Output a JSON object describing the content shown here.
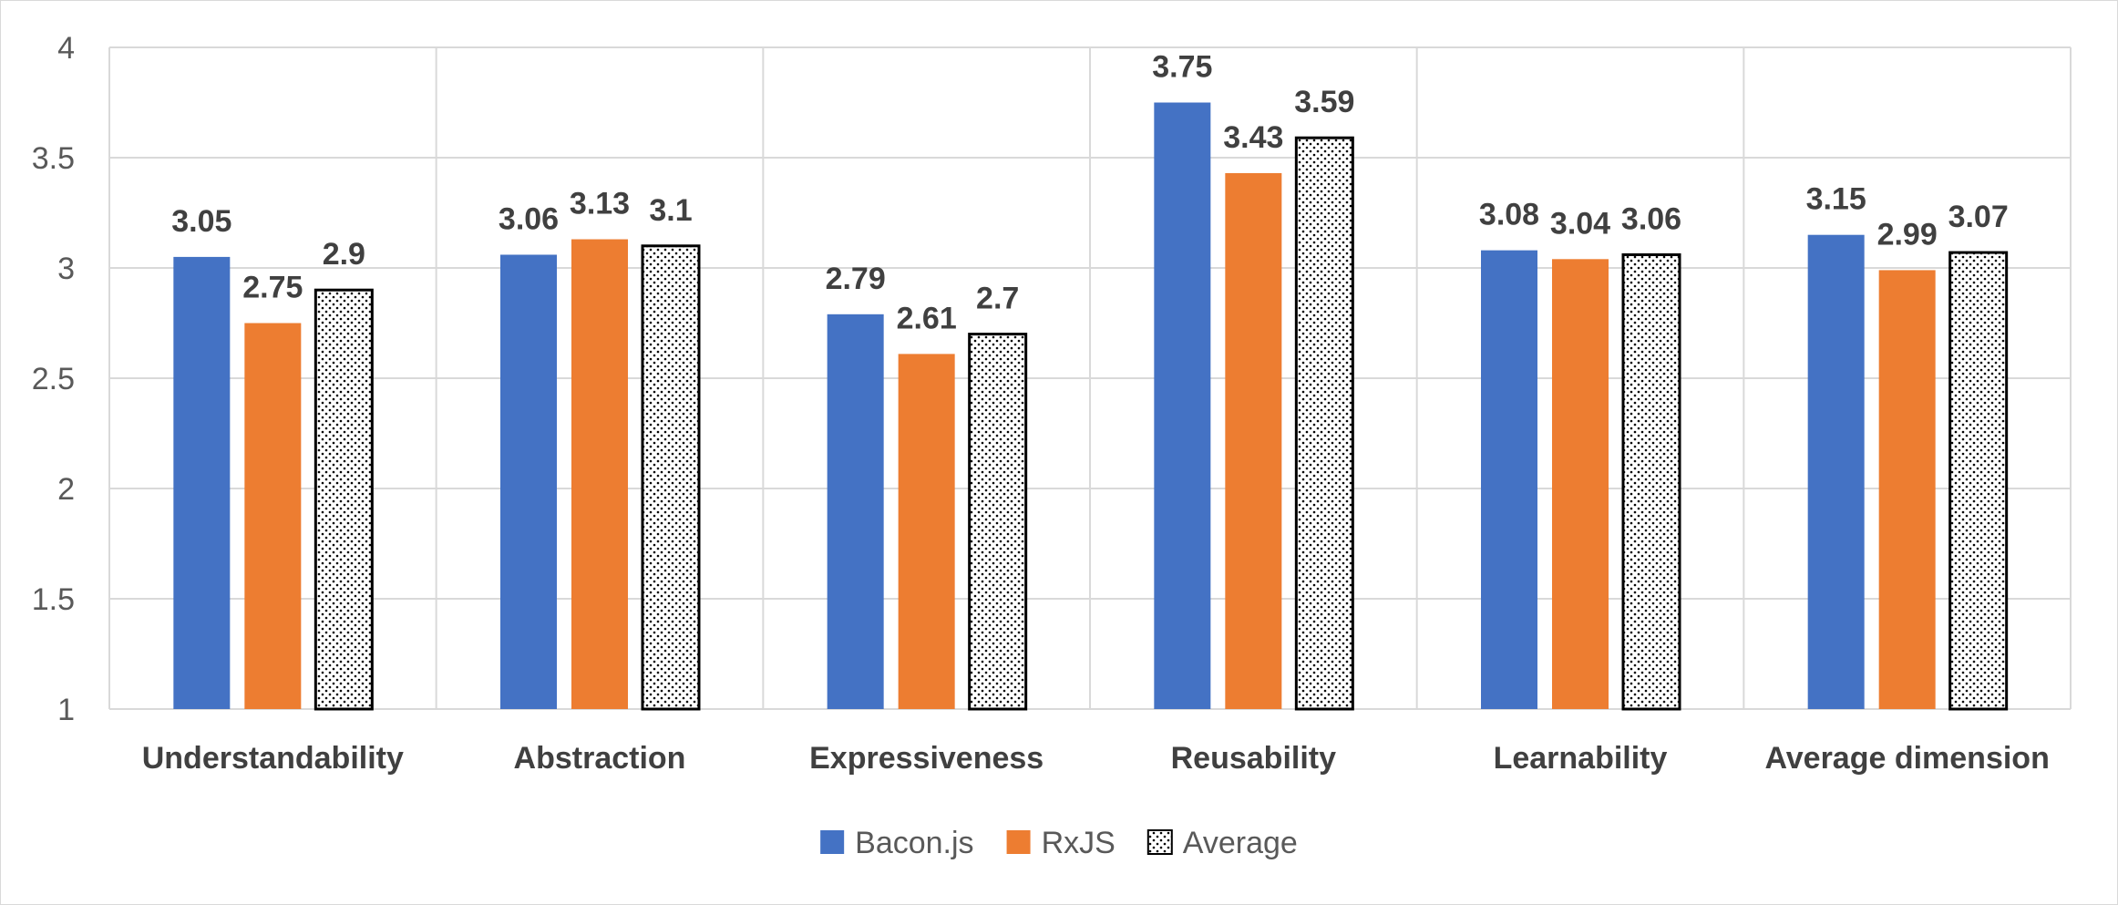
{
  "chart_data": {
    "type": "bar",
    "title": "",
    "xlabel": "",
    "ylabel": "",
    "ylim": [
      1,
      4
    ],
    "yticks": [
      "1",
      "1.5",
      "2",
      "2.5",
      "3",
      "3.5",
      "4"
    ],
    "grid": true,
    "legend_position": "bottom",
    "categories": [
      "Understandability",
      "Abstraction",
      "Expressiveness",
      "Reusability",
      "Learnability",
      "Average dimension"
    ],
    "series": [
      {
        "name": "Bacon.js",
        "color": "#4472c4",
        "pattern": "solid",
        "values": [
          3.05,
          3.06,
          2.79,
          3.75,
          3.08,
          3.15
        ],
        "labels": [
          "3.05",
          "3.06",
          "2.79",
          "3.75",
          "3.08",
          "3.15"
        ]
      },
      {
        "name": "RxJS",
        "color": "#ed7d31",
        "pattern": "solid",
        "values": [
          2.75,
          3.13,
          2.61,
          3.43,
          3.04,
          2.99
        ],
        "labels": [
          "2.75",
          "3.13",
          "2.61",
          "3.43",
          "3.04",
          "2.99"
        ]
      },
      {
        "name": "Average",
        "color": "#ffffff",
        "pattern": "dotted",
        "values": [
          2.9,
          3.1,
          2.7,
          3.59,
          3.06,
          3.07
        ],
        "labels": [
          "2.9",
          "3.1",
          "2.7",
          "3.59",
          "3.06",
          "3.07"
        ]
      }
    ]
  }
}
